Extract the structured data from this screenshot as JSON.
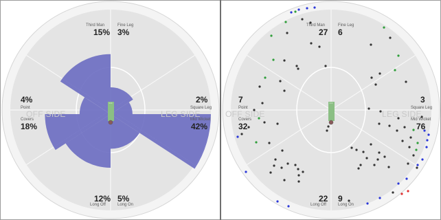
{
  "colors": {
    "field": "#e4e4e4",
    "rim": "#f4f4f4",
    "inner_ring": "#ffffff",
    "pitch": "#8bbf84",
    "wedge": "#6e6fc2",
    "boundary_dot": "#2a36d8",
    "dot": "#333333",
    "green_dot": "#2f9e3a",
    "red_dot": "#e03030"
  },
  "side_labels": {
    "off": "OFF SIDE",
    "leg": "LEG SIDE"
  },
  "left_panel": {
    "zones": [
      {
        "id": "third-man",
        "name": "Third Man",
        "value": "15%"
      },
      {
        "id": "fine-leg",
        "name": "Fine Leg",
        "value": "3%"
      },
      {
        "id": "square-leg",
        "name": "Square Leg",
        "value": "2%"
      },
      {
        "id": "mid-wicket",
        "name": "Mid Wicket",
        "value": "42%"
      },
      {
        "id": "long-on",
        "name": "Long On",
        "value": "5%"
      },
      {
        "id": "long-off",
        "name": "Long Off",
        "value": "12%"
      },
      {
        "id": "covers",
        "name": "Covers",
        "value": "18%"
      },
      {
        "id": "point",
        "name": "Point",
        "value": "4%"
      }
    ]
  },
  "right_panel": {
    "zones": [
      {
        "id": "third-man",
        "name": "Third Man",
        "value": "27"
      },
      {
        "id": "fine-leg",
        "name": "Fine Leg",
        "value": "6"
      },
      {
        "id": "square-leg",
        "name": "Square Leg",
        "value": "3"
      },
      {
        "id": "mid-wicket",
        "name": "Mid Wicket",
        "value": "76"
      },
      {
        "id": "long-on",
        "name": "Long On",
        "value": "9"
      },
      {
        "id": "long-off",
        "name": "Long Off",
        "value": "22"
      },
      {
        "id": "covers",
        "name": "Covers",
        "value": "32"
      },
      {
        "id": "point",
        "name": "Point",
        "value": "7"
      }
    ]
  }
}
